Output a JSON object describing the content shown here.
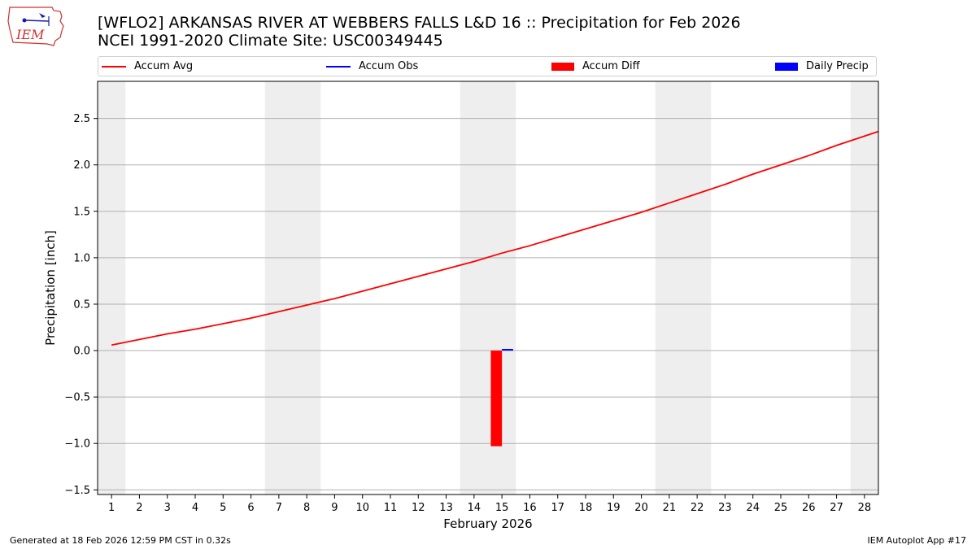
{
  "logo": {
    "text": "IEM"
  },
  "title": {
    "line1": "[WFLO2] ARKANSAS RIVER  AT WEBBERS FALLS L&D 16 :: Precipitation for Feb 2026",
    "line2": "NCEI 1991-2020 Climate Site: USC00349445"
  },
  "legend": [
    {
      "label": "Accum Avg",
      "kind": "line",
      "color": "#ff0000"
    },
    {
      "label": "Accum Obs",
      "kind": "line",
      "color": "#0000ff"
    },
    {
      "label": "Accum Diff",
      "kind": "patch",
      "color": "#ff0000"
    },
    {
      "label": "Daily Precip",
      "kind": "patch",
      "color": "#0000ff"
    }
  ],
  "footer": {
    "left": "Generated at 18 Feb 2026 12:59 PM CST in 0.32s",
    "right": "IEM Autoplot App #17"
  },
  "chart_data": {
    "type": "line",
    "xlabel": "February 2026",
    "ylabel": "Precipitation [inch]",
    "xlim": [
      0.5,
      28.5
    ],
    "ylim": [
      -1.55,
      2.9
    ],
    "x_ticks": [
      1,
      2,
      3,
      4,
      5,
      6,
      7,
      8,
      9,
      10,
      11,
      12,
      13,
      14,
      15,
      16,
      17,
      18,
      19,
      20,
      21,
      22,
      23,
      24,
      25,
      26,
      27,
      28
    ],
    "y_ticks": [
      -1.5,
      -1.0,
      -0.5,
      0.0,
      0.5,
      1.0,
      1.5,
      2.0,
      2.5
    ],
    "y_tick_labels": [
      "−1.5",
      "−1.0",
      "−0.5",
      "0.0",
      "0.5",
      "1.0",
      "1.5",
      "2.0",
      "2.5"
    ],
    "grid": "horizontal",
    "weekend_shading": [
      [
        0.5,
        1.5
      ],
      [
        6.5,
        8.5
      ],
      [
        13.5,
        15.5
      ],
      [
        20.5,
        22.5
      ],
      [
        27.5,
        28.5
      ]
    ],
    "weekend_color": "#eeeeee",
    "series": [
      {
        "name": "Accum Avg",
        "kind": "line",
        "color": "#ff0000",
        "x": [
          1,
          2,
          3,
          4,
          5,
          6,
          7,
          8,
          9,
          10,
          11,
          12,
          13,
          14,
          15,
          16,
          17,
          18,
          19,
          20,
          21,
          22,
          23,
          24,
          25,
          26,
          27,
          28,
          28.5
        ],
        "values": [
          0.06,
          0.12,
          0.18,
          0.23,
          0.29,
          0.35,
          0.42,
          0.49,
          0.56,
          0.64,
          0.72,
          0.8,
          0.88,
          0.96,
          1.05,
          1.13,
          1.22,
          1.31,
          1.4,
          1.49,
          1.59,
          1.69,
          1.79,
          1.9,
          2.0,
          2.1,
          2.21,
          2.31,
          2.36
        ]
      },
      {
        "name": "Accum Obs",
        "kind": "line",
        "color": "#0000ff",
        "x": [
          15,
          15.4
        ],
        "values": [
          0.01,
          0.01
        ]
      },
      {
        "name": "Accum Diff",
        "kind": "bar",
        "color": "#ff0000",
        "x": [
          14.8
        ],
        "width": 0.4,
        "values": [
          -1.03
        ]
      },
      {
        "name": "Daily Precip",
        "kind": "bar",
        "color": "#0000ff",
        "x": [
          15.2
        ],
        "width": 0.4,
        "values": [
          0.01
        ]
      }
    ]
  }
}
